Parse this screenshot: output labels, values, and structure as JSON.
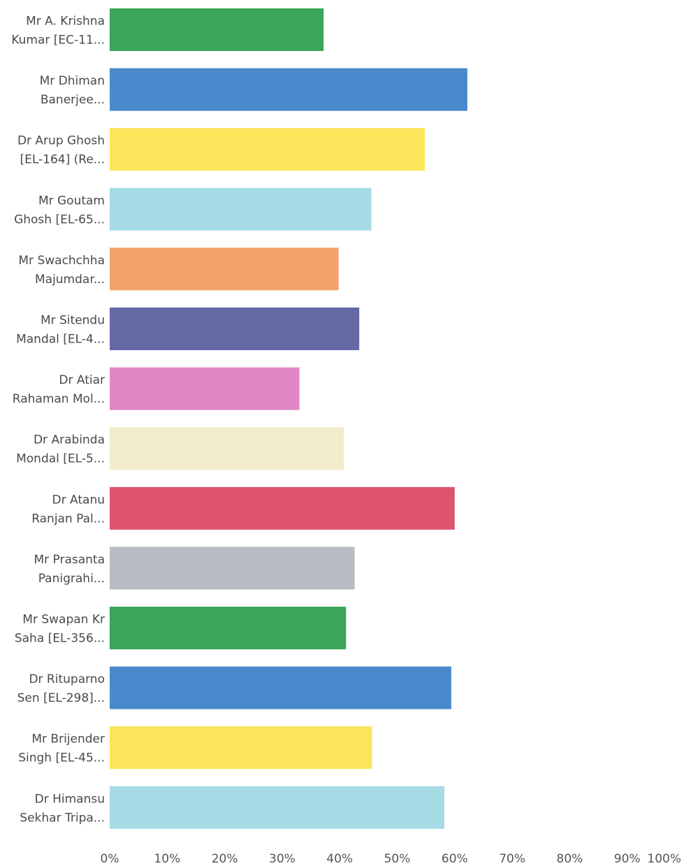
{
  "chart_data": {
    "type": "bar",
    "orientation": "horizontal",
    "categories": [
      [
        "Mr A. Krishna",
        "Kumar [EC-11..."
      ],
      [
        "Mr Dhiman",
        "Banerjee..."
      ],
      [
        "Dr Arup Ghosh",
        "[EL-164] (Re..."
      ],
      [
        "Mr Goutam",
        "Ghosh [EL-65..."
      ],
      [
        "Mr Swachchha",
        "Majumdar..."
      ],
      [
        "Mr Sitendu",
        "Mandal [EL-4..."
      ],
      [
        "Dr Atiar",
        "Rahaman Mol..."
      ],
      [
        "Dr Arabinda",
        "Mondal [EL-5..."
      ],
      [
        "Dr Atanu",
        "Ranjan Pal..."
      ],
      [
        "Mr Prasanta",
        "Panigrahi..."
      ],
      [
        "Mr Swapan Kr",
        "Saha [EL-356..."
      ],
      [
        "Dr Rituparno",
        "Sen [EL-298]..."
      ],
      [
        "Mr Brijender",
        "Singh [EL-45..."
      ],
      [
        "Dr Himansu",
        "Sekhar Tripa..."
      ]
    ],
    "values": [
      37.2,
      62.2,
      54.8,
      45.5,
      39.8,
      43.4,
      33.0,
      40.7,
      60.0,
      42.6,
      41.1,
      59.4,
      45.6,
      58.2
    ],
    "colors": [
      "#3aa65a",
      "#4a88cc",
      "#fbe55b",
      "#a6dbe6",
      "#f4a26a",
      "#6569a6",
      "#df88c4",
      "#f1ecc9",
      "#de5370",
      "#b8bdc3",
      "#3aa65a",
      "#4a88cc",
      "#fbe55b",
      "#a6dbe6"
    ],
    "xlim": [
      0,
      100
    ],
    "xticks": [
      "0%",
      "10%",
      "20%",
      "30%",
      "40%",
      "50%",
      "60%",
      "70%",
      "80%",
      "90%",
      "100%"
    ],
    "grid": false,
    "title": "",
    "xlabel": "",
    "ylabel": ""
  }
}
